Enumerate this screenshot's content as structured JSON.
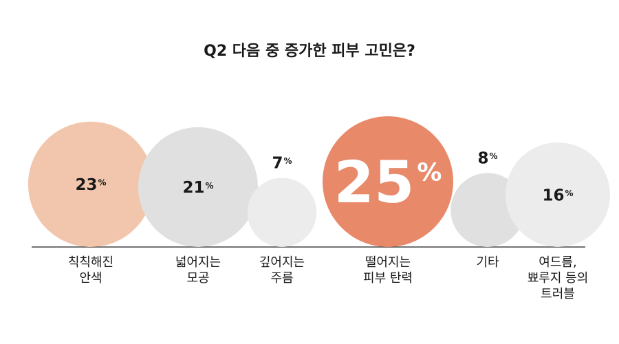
{
  "title": "Q2  다음 중 증가한 피부 고민은?",
  "chart_data": {
    "type": "bubble",
    "title": "Q2  다음 중 증가한 피부 고민은?",
    "unit": "%",
    "categories": [
      "칙칙해진\n안색",
      "넓어지는\n모공",
      "깊어지는\n주름",
      "떨어지는\n피부 탄력",
      "기타",
      "여드름,\n뾰루지 등의\n트러블"
    ],
    "values": [
      23,
      21,
      7,
      25,
      8,
      16
    ],
    "colors": [
      "#f2c6ad",
      "#dfe0df",
      "#ececec",
      "#e8896a",
      "#dfe0df",
      "#ececec"
    ],
    "value_colors": [
      "#1a1a1a",
      "#1a1a1a",
      "#1a1a1a",
      "#ffffff",
      "#1a1a1a",
      "#1a1a1a"
    ],
    "value_labels_outside": [
      false,
      false,
      true,
      false,
      true,
      false
    ],
    "highlight": "떨어지는\n피부 탄력",
    "grid": false,
    "legend": "none"
  }
}
